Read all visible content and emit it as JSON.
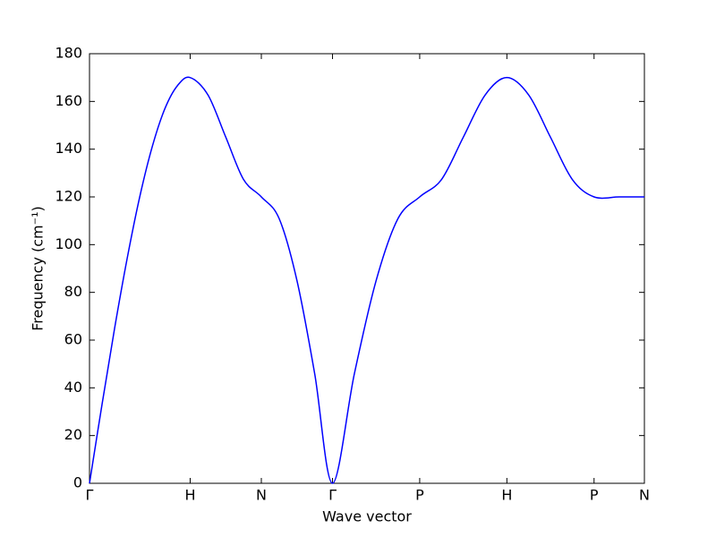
{
  "chart_data": {
    "type": "line",
    "xlabel": "Wave vector",
    "ylabel": "Frequency (cm⁻¹)",
    "x": [
      0,
      0.125,
      0.25,
      0.375,
      0.5,
      0.625,
      0.75,
      0.875,
      1,
      1.177,
      1.354,
      1.53,
      1.707,
      1.884,
      2.061,
      2.237,
      2.414,
      2.631,
      2.847,
      3.064,
      3.28,
      3.497,
      3.713,
      3.93,
      4.146,
      4.363,
      4.579,
      4.796,
      5.012,
      5.262,
      5.512
    ],
    "series": [
      {
        "color": "#0000ff",
        "values": [
          0,
          33.2,
          65.1,
          94.4,
          120.2,
          141.3,
          157.1,
          166.7,
          170,
          162.7,
          145,
          127.3,
          120,
          110.9,
          84.9,
          45.9,
          0,
          45.9,
          84.9,
          110.9,
          120,
          127.3,
          145,
          162.7,
          170,
          162.7,
          145,
          127.3,
          120,
          120,
          120
        ]
      }
    ],
    "xlim": [
      0,
      5.512
    ],
    "xticks": [
      {
        "value": 0,
        "label": "Γ"
      },
      {
        "value": 1,
        "label": "H"
      },
      {
        "value": 1.707,
        "label": "N"
      },
      {
        "value": 2.414,
        "label": "Γ"
      },
      {
        "value": 3.28,
        "label": "P"
      },
      {
        "value": 4.146,
        "label": "H"
      },
      {
        "value": 5.012,
        "label": "P"
      },
      {
        "value": 5.512,
        "label": "N"
      }
    ],
    "ylim": [
      0,
      180
    ],
    "yticks": [
      0,
      20,
      40,
      60,
      80,
      100,
      120,
      140,
      160,
      180
    ]
  }
}
